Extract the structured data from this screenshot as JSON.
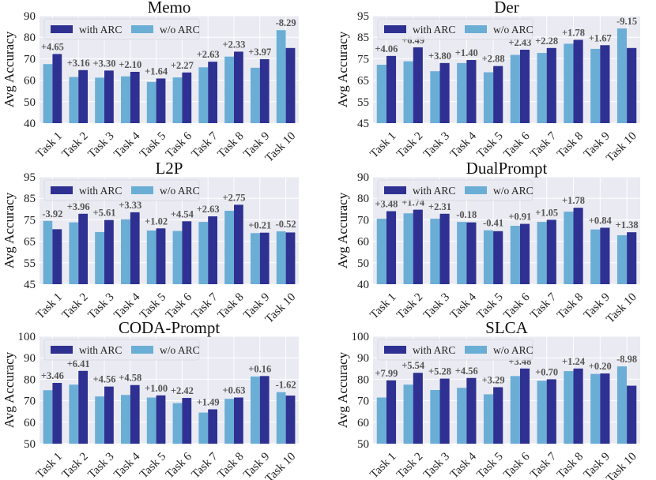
{
  "figure": {
    "ylabel": "Avg Accuracy"
  },
  "legend": {
    "with_label": "with ARC",
    "without_label": "w/o ARC"
  },
  "colors": {
    "with_arc": "#2e3192",
    "without_arc": "#6aaed6",
    "plot_bg": "#eaeaf2",
    "grid": "#ffffff",
    "annotation": "#555555"
  },
  "chart_data": [
    {
      "type": "bar",
      "title": "Memo",
      "ylabel": "Avg Accuracy",
      "categories": [
        "Task 1",
        "Task 2",
        "Task 3",
        "Task 4",
        "Task 5",
        "Task 6",
        "Task 7",
        "Task 8",
        "Task 9",
        "Task 10"
      ],
      "ylim": [
        40,
        90
      ],
      "yticks": [
        40,
        50,
        60,
        70,
        80,
        90
      ],
      "series": [
        {
          "name": "w/o ARC",
          "values": [
            67.5,
            61.5,
            61.2,
            61.8,
            59.2,
            61.3,
            66.0,
            71.0,
            65.8,
            83.3
          ]
        },
        {
          "name": "with ARC",
          "values": [
            72.2,
            64.7,
            64.5,
            63.9,
            60.8,
            63.6,
            68.6,
            73.3,
            69.8,
            75.0
          ]
        }
      ],
      "annotations": [
        "+4.65",
        "+3.16",
        "+3.30",
        "+2.10",
        "+1.64",
        "+2.27",
        "+2.63",
        "+2.33",
        "+3.97",
        "-8.29"
      ]
    },
    {
      "type": "bar",
      "title": "Der",
      "ylabel": "Avg Accuracy",
      "categories": [
        "Task 1",
        "Task 2",
        "Task 3",
        "Task 4",
        "Task 5",
        "Task 6",
        "Task 7",
        "Task 8",
        "Task 9",
        "Task 10"
      ],
      "ylim": [
        45,
        95
      ],
      "yticks": [
        45,
        55,
        65,
        75,
        85,
        95
      ],
      "series": [
        {
          "name": "w/o ARC",
          "values": [
            72.2,
            73.8,
            69.2,
            73.0,
            68.7,
            76.8,
            77.7,
            82.0,
            79.6,
            89.1
          ]
        },
        {
          "name": "with ARC",
          "values": [
            76.3,
            80.3,
            73.0,
            74.4,
            71.6,
            79.2,
            80.0,
            83.8,
            81.3,
            80.0
          ]
        }
      ],
      "annotations": [
        "+4.06",
        "+6.49",
        "+3.80",
        "+1.40",
        "+2.88",
        "+2.43",
        "+2.28",
        "+1.78",
        "+1.67",
        "-9.15"
      ]
    },
    {
      "type": "bar",
      "title": "L2P",
      "ylabel": "Avg Accuracy",
      "categories": [
        "Task 1",
        "Task 2",
        "Task 3",
        "Task 4",
        "Task 5",
        "Task 6",
        "Task 7",
        "Task 8",
        "Task 9",
        "Task 10"
      ],
      "ylim": [
        45,
        95
      ],
      "yticks": [
        45,
        55,
        65,
        75,
        85,
        95
      ],
      "series": [
        {
          "name": "w/o ARC",
          "values": [
            74.5,
            73.8,
            69.3,
            75.2,
            70.0,
            69.8,
            74.0,
            79.2,
            68.8,
            69.6
          ]
        },
        {
          "name": "with ARC",
          "values": [
            70.6,
            77.8,
            74.9,
            78.5,
            71.0,
            74.3,
            76.6,
            82.0,
            69.0,
            69.1
          ]
        }
      ],
      "annotations": [
        "-3.92",
        "+3.96",
        "+5.61",
        "+3.33",
        "+1.02",
        "+4.54",
        "+2.63",
        "+2.75",
        "+0.21",
        "-0.52"
      ]
    },
    {
      "type": "bar",
      "title": "DualPrompt",
      "ylabel": "Avg Accuracy",
      "categories": [
        "Task 1",
        "Task 2",
        "Task 3",
        "Task 4",
        "Task 5",
        "Task 6",
        "Task 7",
        "Task 8",
        "Task 9",
        "Task 10"
      ],
      "ylim": [
        40,
        90
      ],
      "yticks": [
        40,
        50,
        60,
        70,
        80,
        90
      ],
      "series": [
        {
          "name": "w/o ARC",
          "values": [
            70.5,
            73.0,
            70.5,
            69.0,
            65.1,
            67.2,
            69.0,
            73.8,
            65.5,
            62.8
          ]
        },
        {
          "name": "with ARC",
          "values": [
            74.0,
            74.7,
            72.8,
            68.8,
            64.7,
            68.1,
            70.0,
            75.6,
            66.3,
            64.2
          ]
        }
      ],
      "annotations": [
        "+3.48",
        "+1.74",
        "+2.31",
        "-0.18",
        "-0.41",
        "+0.91",
        "+1.05",
        "+1.78",
        "+0.84",
        "+1.38"
      ]
    },
    {
      "type": "bar",
      "title": "CODA-Prompt",
      "ylabel": "Avg Accuracy",
      "categories": [
        "Task 1",
        "Task 2",
        "Task 3",
        "Task 4",
        "Task 5",
        "Task 6",
        "Task 7",
        "Task 8",
        "Task 9",
        "Task 10"
      ],
      "ylim": [
        50,
        100
      ],
      "yticks": [
        50,
        60,
        70,
        80,
        90,
        100
      ],
      "series": [
        {
          "name": "w/o ARC",
          "values": [
            74.9,
            77.5,
            72.0,
            72.7,
            71.5,
            68.9,
            64.5,
            70.9,
            81.3,
            74.0
          ]
        },
        {
          "name": "with ARC",
          "values": [
            78.3,
            83.9,
            76.6,
            77.3,
            72.5,
            71.3,
            66.0,
            71.5,
            81.5,
            72.4
          ]
        }
      ],
      "annotations": [
        "+3.46",
        "+6.41",
        "+4.56",
        "+4.58",
        "+1.00",
        "+2.42",
        "+1.49",
        "+0.63",
        "+0.16",
        "-1.62"
      ]
    },
    {
      "type": "bar",
      "title": "SLCA",
      "ylabel": "Avg Accuracy",
      "categories": [
        "Task 1",
        "Task 2",
        "Task 3",
        "Task 4",
        "Task 5",
        "Task 6",
        "Task 7",
        "Task 8",
        "Task 9",
        "Task 10"
      ],
      "ylim": [
        50,
        100
      ],
      "yticks": [
        50,
        60,
        70,
        80,
        90,
        100
      ],
      "series": [
        {
          "name": "w/o ARC",
          "values": [
            71.5,
            77.5,
            75.0,
            76.0,
            73.0,
            81.5,
            79.3,
            83.8,
            82.5,
            86.0
          ]
        },
        {
          "name": "with ARC",
          "values": [
            79.5,
            83.0,
            80.3,
            80.6,
            76.3,
            85.0,
            80.0,
            85.0,
            82.7,
            77.0
          ]
        }
      ],
      "annotations": [
        "+7.99",
        "+5.54",
        "+5.28",
        "+4.56",
        "+3.29",
        "+3.48",
        "+0.70",
        "+1.24",
        "+0.20",
        "-8.98"
      ]
    }
  ]
}
